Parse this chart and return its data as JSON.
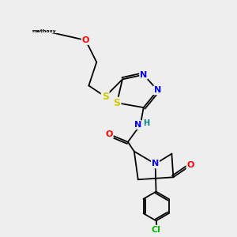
{
  "background_color": "#eeeeee",
  "bond_color": "#000000",
  "atom_colors": {
    "N": "#0000ff",
    "O": "#ff0000",
    "S": "#cccc00",
    "Cl": "#00bb00",
    "H": "#008080",
    "C": "#000000"
  },
  "bond_lw": 1.3,
  "font_size": 8
}
